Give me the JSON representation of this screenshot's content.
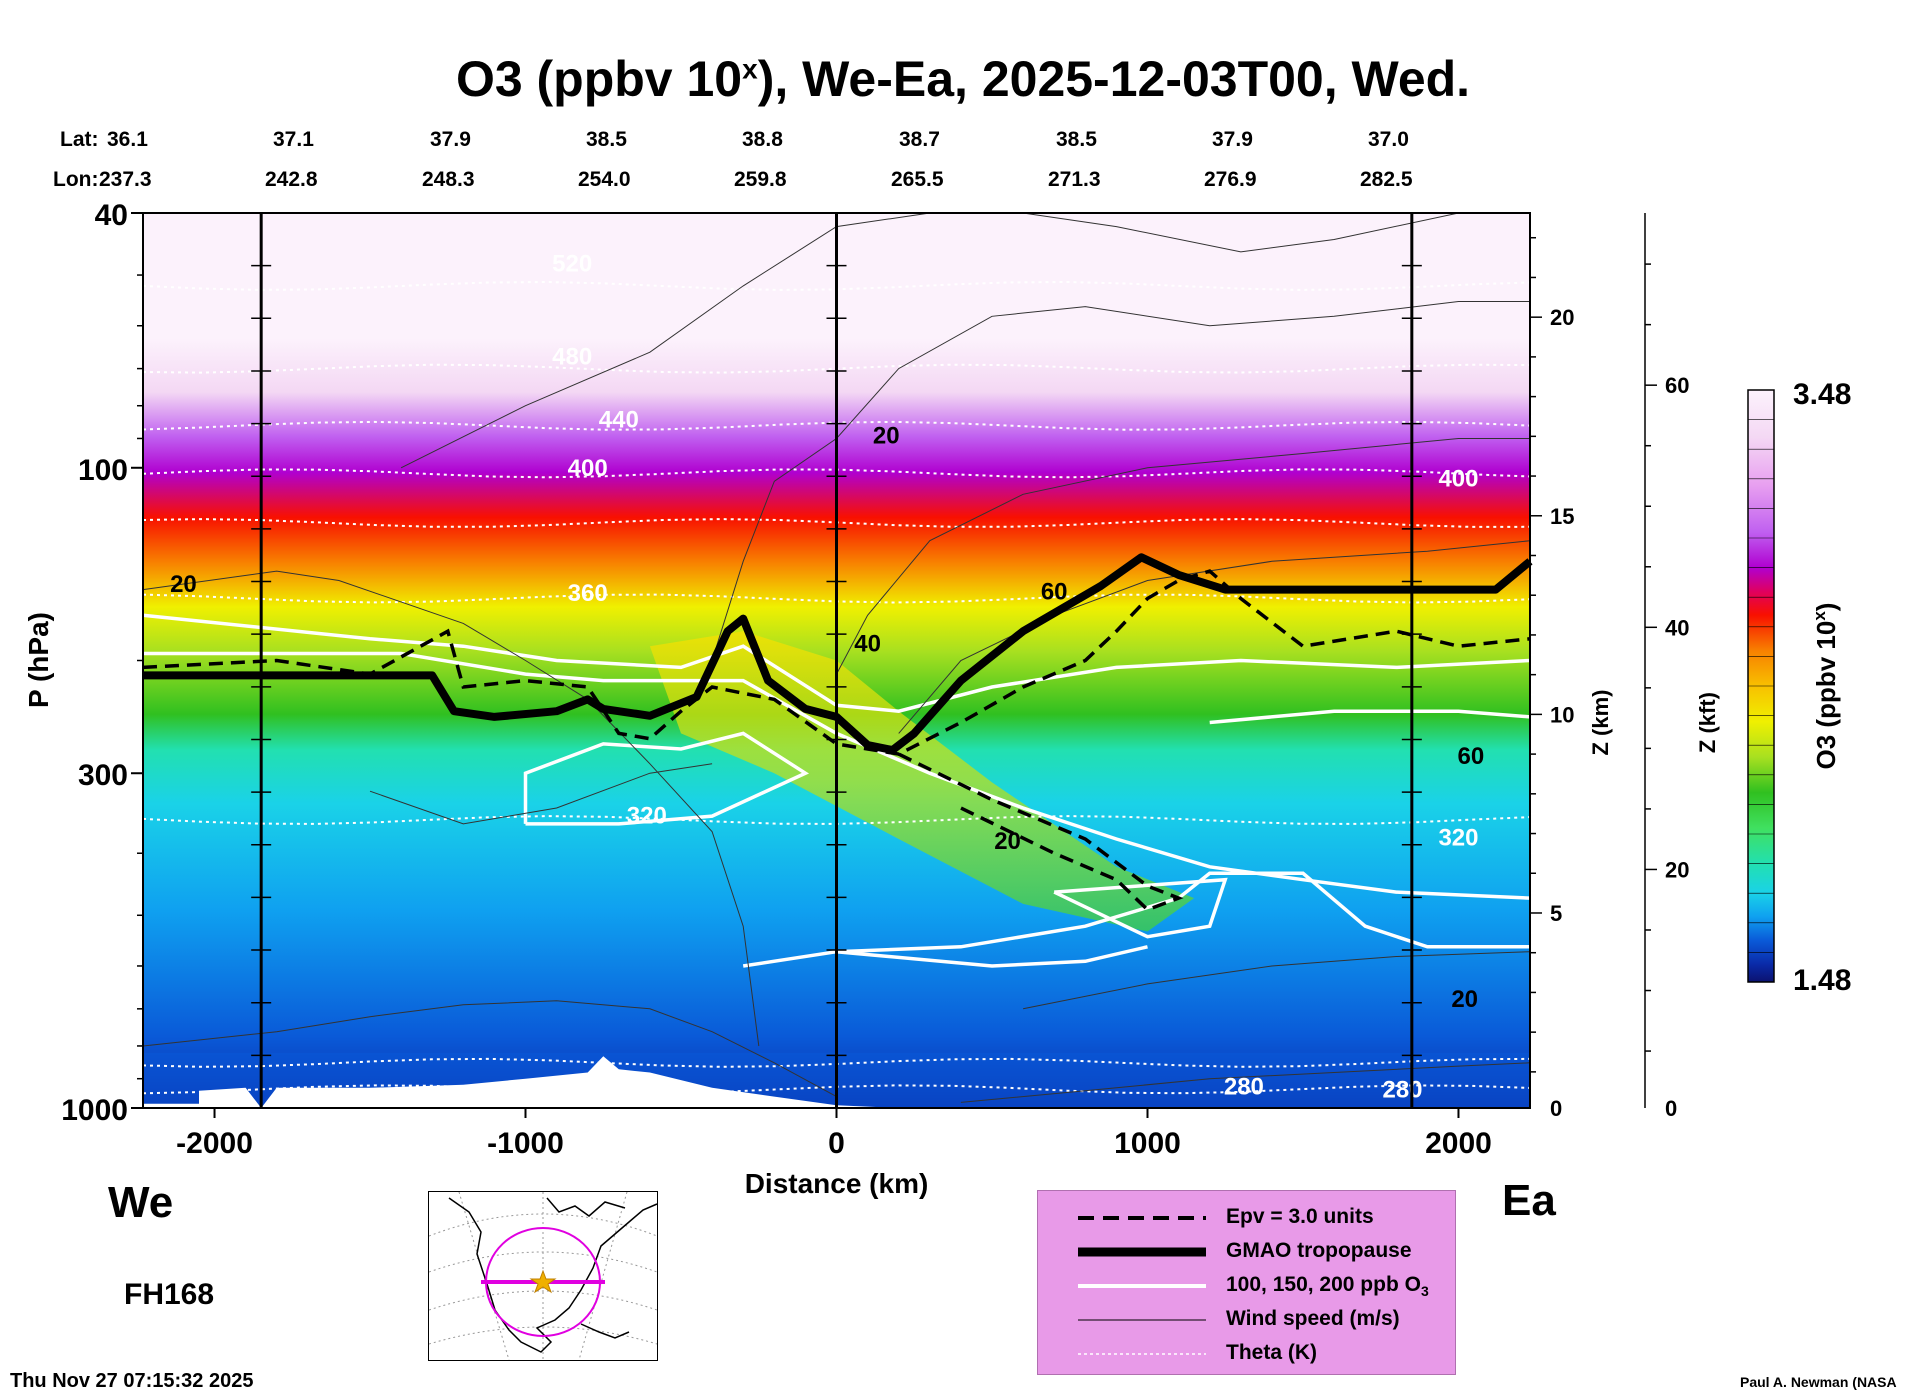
{
  "title": {
    "main_prefix": "O3 (ppbv 10",
    "sup": "x",
    "main_suffix": "), We-Ea, 2025-12-03T00, Wed."
  },
  "header": {
    "lat_label": "Lat:",
    "lon_label": "Lon:",
    "lats": [
      "36.1",
      "37.1",
      "37.9",
      "38.5",
      "38.8",
      "38.7",
      "38.5",
      "37.9",
      "37.0"
    ],
    "lons": [
      "237.3",
      "242.8",
      "248.3",
      "254.0",
      "259.8",
      "265.5",
      "271.3",
      "276.9",
      "282.5"
    ]
  },
  "side_labels": {
    "west": "We",
    "east": "Ea",
    "forecast_hour": "FH168"
  },
  "footer": {
    "timestamp": "Thu Nov 27 07:15:32 2025",
    "credit": "Paul A. Newman (NASA"
  },
  "colorbar": {
    "max_label": "3.48",
    "min_label": "1.48",
    "label_prefix": "O3 (ppbv 10",
    "label_sup": "x",
    "label_suffix": ")"
  },
  "legend": {
    "items": [
      {
        "label": "Epv = 3.0 units",
        "style": "dashed-black"
      },
      {
        "label": "GMAO tropopause",
        "style": "thick-black"
      },
      {
        "label": "100, 150, 200 ppb O",
        "sub": "3",
        "style": "white"
      },
      {
        "label": "Wind speed (m/s)",
        "style": "thin-black"
      },
      {
        "label": "Theta (K)",
        "style": "dotted-white"
      }
    ],
    "background": "#e89ae8"
  },
  "chart_data": {
    "type": "heatmap",
    "title": "O3 (ppbv 10x), We-Ea, 2025-12-03T00, Wed.",
    "xlabel": "Distance (km)",
    "ylabel": "P (hPa)",
    "y2label": "Z (km)",
    "y3label": "Z (kft)",
    "xlim": [
      -2230,
      2230
    ],
    "ylim": [
      1000,
      40
    ],
    "y_scale": "log",
    "x_ticks": [
      -2000,
      -1000,
      0,
      1000,
      2000
    ],
    "x_tick_labels": [
      "-2000",
      "-1000",
      "0",
      "1000",
      "2000"
    ],
    "y_ticks": [
      40,
      100,
      300,
      1000
    ],
    "y_tick_labels": [
      "40",
      "100",
      "300",
      "1000"
    ],
    "z_km_ticks": [
      0,
      5,
      10,
      15,
      20
    ],
    "z_kft_ticks": [
      0,
      20,
      40,
      60
    ],
    "colorbar_range": [
      1.48,
      3.48
    ],
    "colors": [
      "#0b1270",
      "#0a2aa8",
      "#0a5ad8",
      "#0fa0f0",
      "#1ad2e8",
      "#22e0b0",
      "#40e060",
      "#30c020",
      "#a8e020",
      "#f0f000",
      "#f8c000",
      "#f88000",
      "#f81000",
      "#e00060",
      "#b000d0",
      "#c060f0",
      "#e8a0f0",
      "#f4d8f4",
      "#fcf2fc"
    ],
    "vertical_lines_km": [
      -1850,
      0,
      1850
    ],
    "tropopause_hpa": {
      "x": [
        -2230,
        -1300,
        -1230,
        -1100,
        -900,
        -800,
        -750,
        -600,
        -450,
        -350,
        -300,
        -220,
        -100,
        0,
        100,
        180,
        250,
        400,
        600,
        850,
        980,
        1100,
        1250,
        1600,
        2120,
        2230
      ],
      "p": [
        211,
        211,
        240,
        245,
        240,
        230,
        238,
        244,
        228,
        180,
        172,
        215,
        238,
        245,
        271,
        276,
        260,
        215,
        180,
        153,
        138,
        147,
        155,
        155,
        155,
        140
      ]
    },
    "epv_contour_hpa": {
      "x": [
        -2230,
        -1800,
        -1500,
        -1250,
        -1200,
        -1000,
        -800,
        -700,
        -600,
        -500,
        -400,
        -200,
        0,
        200,
        400,
        600,
        800,
        900,
        1000,
        1100,
        1200,
        1300,
        1500,
        1800,
        2000,
        2230
      ],
      "p": [
        205,
        200,
        210,
        180,
        220,
        215,
        220,
        260,
        265,
        240,
        220,
        230,
        270,
        280,
        250,
        220,
        200,
        180,
        160,
        150,
        145,
        160,
        190,
        180,
        190,
        185
      ]
    },
    "theta_labels_k": [
      {
        "x": -850,
        "p": 48,
        "label": "520"
      },
      {
        "x": -850,
        "p": 67,
        "label": "480"
      },
      {
        "x": -700,
        "p": 84,
        "label": "440"
      },
      {
        "x": -800,
        "p": 100,
        "label": "400"
      },
      {
        "x": -800,
        "p": 157,
        "label": "360"
      },
      {
        "x": -610,
        "p": 349,
        "label": "320"
      },
      {
        "x": 1310,
        "p": 926,
        "label": "280"
      },
      {
        "x": 1820,
        "p": 936,
        "label": "280"
      },
      {
        "x": 2000,
        "p": 104,
        "label": "400"
      },
      {
        "x": 2000,
        "p": 378,
        "label": "320"
      }
    ],
    "wind_labels_ms": [
      {
        "x": -2100,
        "p": 152,
        "label": "20"
      },
      {
        "x": 160,
        "p": 89,
        "label": "20"
      },
      {
        "x": 100,
        "p": 188,
        "label": "40"
      },
      {
        "x": 700,
        "p": 156,
        "label": "60"
      },
      {
        "x": 2040,
        "p": 282,
        "label": "60"
      },
      {
        "x": 550,
        "p": 383,
        "label": "20"
      },
      {
        "x": 2020,
        "p": 676,
        "label": "20"
      }
    ],
    "ozone_contours_ppb": [
      100,
      150,
      200
    ],
    "theta_contours_k": [
      280,
      320,
      360,
      400,
      440,
      480,
      520
    ]
  }
}
